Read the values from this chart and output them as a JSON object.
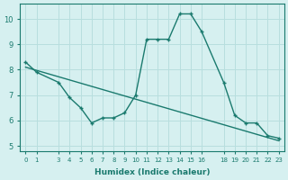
{
  "title": "",
  "xlabel": "Humidex (Indice chaleur)",
  "ylabel": "",
  "bg_color": "#d6f0f0",
  "line_color": "#1a7a6e",
  "grid_color": "#b8dede",
  "x_ticks": [
    0,
    1,
    3,
    4,
    5,
    6,
    7,
    8,
    9,
    10,
    11,
    12,
    13,
    14,
    15,
    16,
    18,
    19,
    20,
    21,
    22,
    23
  ],
  "curve1_x": [
    0,
    1,
    3,
    4,
    5,
    6,
    7,
    8,
    9,
    10,
    11,
    12,
    13,
    14,
    15,
    16,
    18,
    19,
    20,
    21,
    22,
    23
  ],
  "curve1_y": [
    8.3,
    7.9,
    7.5,
    6.9,
    6.5,
    5.9,
    6.1,
    6.1,
    6.3,
    7.0,
    9.2,
    9.2,
    9.2,
    10.2,
    10.2,
    9.5,
    7.5,
    6.2,
    5.9,
    5.9,
    5.4,
    5.3
  ],
  "curve2_x": [
    0,
    23
  ],
  "curve2_y": [
    8.1,
    5.2
  ],
  "ylim": [
    4.8,
    10.6
  ],
  "xlim": [
    -0.5,
    23.5
  ]
}
